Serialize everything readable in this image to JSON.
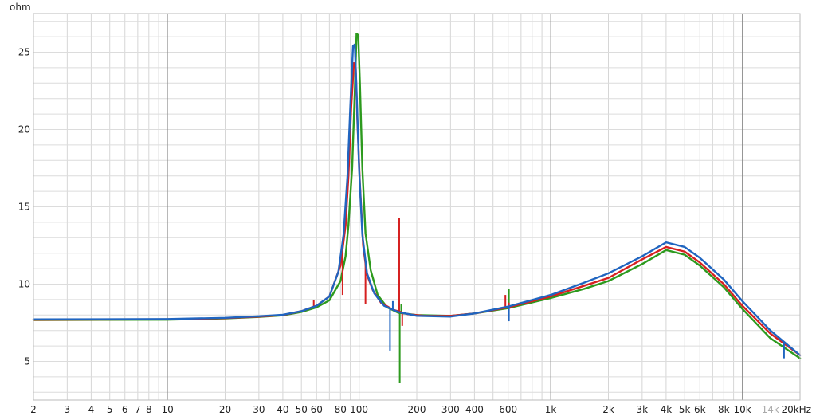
{
  "chart_data": {
    "type": "line",
    "title": "",
    "xlabel": "",
    "ylabel": "ohm",
    "x_scale": "log",
    "xlim": [
      2,
      20000
    ],
    "ylim": [
      2.5,
      27.5
    ],
    "grid": true,
    "legend": "none",
    "y_ticks": [
      {
        "value": 5,
        "label": "5"
      },
      {
        "value": 10,
        "label": "10"
      },
      {
        "value": 15,
        "label": "15"
      },
      {
        "value": 20,
        "label": "20"
      },
      {
        "value": 25,
        "label": "25"
      }
    ],
    "x_ticks": [
      {
        "value": 2,
        "label": "2"
      },
      {
        "value": 3,
        "label": "3"
      },
      {
        "value": 4,
        "label": "4"
      },
      {
        "value": 5,
        "label": "5"
      },
      {
        "value": 6,
        "label": "6"
      },
      {
        "value": 7,
        "label": "7"
      },
      {
        "value": 8,
        "label": "8"
      },
      {
        "value": 10,
        "label": "10"
      },
      {
        "value": 20,
        "label": "20"
      },
      {
        "value": 30,
        "label": "30"
      },
      {
        "value": 40,
        "label": "40"
      },
      {
        "value": 50,
        "label": "50"
      },
      {
        "value": 60,
        "label": "60"
      },
      {
        "value": 80,
        "label": "80"
      },
      {
        "value": 100,
        "label": "100"
      },
      {
        "value": 200,
        "label": "200"
      },
      {
        "value": 300,
        "label": "300"
      },
      {
        "value": 400,
        "label": "400"
      },
      {
        "value": 600,
        "label": "600"
      },
      {
        "value": 1000,
        "label": "1k"
      },
      {
        "value": 2000,
        "label": "2k"
      },
      {
        "value": 3000,
        "label": "3k"
      },
      {
        "value": 4000,
        "label": "4k"
      },
      {
        "value": 5000,
        "label": "5k"
      },
      {
        "value": 6000,
        "label": "6k"
      },
      {
        "value": 8000,
        "label": "8k"
      },
      {
        "value": 10000,
        "label": "10k"
      },
      {
        "value": 14000,
        "label": "14k",
        "dim": true
      },
      {
        "value": 20000,
        "label": "20kHz"
      }
    ],
    "major_x_gridlines": [
      10,
      100,
      1000,
      10000
    ],
    "series": [
      {
        "color": "#d62020",
        "points": [
          [
            2,
            7.7
          ],
          [
            10,
            7.72
          ],
          [
            20,
            7.8
          ],
          [
            30,
            7.9
          ],
          [
            40,
            8.0
          ],
          [
            50,
            8.25
          ],
          [
            60,
            8.6
          ],
          [
            70,
            9.2
          ],
          [
            80,
            11.2
          ],
          [
            85,
            13.8
          ],
          [
            88,
            17.0
          ],
          [
            91,
            21.5
          ],
          [
            94,
            24.3
          ],
          [
            96,
            24.0
          ],
          [
            98,
            20.5
          ],
          [
            101,
            16.5
          ],
          [
            105,
            12.5
          ],
          [
            110,
            10.6
          ],
          [
            118,
            9.6
          ],
          [
            130,
            8.8
          ],
          [
            150,
            8.35
          ],
          [
            180,
            8.05
          ],
          [
            220,
            7.95
          ],
          [
            300,
            7.95
          ],
          [
            400,
            8.1
          ],
          [
            600,
            8.5
          ],
          [
            1000,
            9.2
          ],
          [
            1500,
            9.9
          ],
          [
            2000,
            10.4
          ],
          [
            3000,
            11.6
          ],
          [
            4000,
            12.4
          ],
          [
            5000,
            12.1
          ],
          [
            6000,
            11.4
          ],
          [
            8000,
            10.0
          ],
          [
            10000,
            8.6
          ],
          [
            14000,
            6.8
          ],
          [
            20000,
            5.4
          ]
        ],
        "spikes": [
          [
            58,
            8.95
          ],
          [
            82,
            9.3
          ],
          [
            108,
            8.7
          ],
          [
            162,
            14.3
          ],
          [
            168,
            7.3
          ],
          [
            580,
            9.3
          ],
          [
            605,
            8.8
          ]
        ]
      },
      {
        "color": "#2d9a1e",
        "points": [
          [
            2,
            7.68
          ],
          [
            10,
            7.7
          ],
          [
            20,
            7.78
          ],
          [
            30,
            7.88
          ],
          [
            40,
            7.98
          ],
          [
            50,
            8.2
          ],
          [
            60,
            8.5
          ],
          [
            70,
            8.95
          ],
          [
            80,
            10.2
          ],
          [
            85,
            11.8
          ],
          [
            88,
            13.8
          ],
          [
            92,
            17.5
          ],
          [
            95,
            22.5
          ],
          [
            97,
            26.2
          ],
          [
            99,
            26.1
          ],
          [
            101,
            23.0
          ],
          [
            104,
            17.5
          ],
          [
            108,
            13.3
          ],
          [
            115,
            10.9
          ],
          [
            125,
            9.3
          ],
          [
            140,
            8.5
          ],
          [
            160,
            8.15
          ],
          [
            200,
            8.0
          ],
          [
            300,
            7.95
          ],
          [
            400,
            8.1
          ],
          [
            600,
            8.45
          ],
          [
            1000,
            9.1
          ],
          [
            1500,
            9.7
          ],
          [
            2000,
            10.2
          ],
          [
            3000,
            11.3
          ],
          [
            4000,
            12.2
          ],
          [
            5000,
            11.9
          ],
          [
            6000,
            11.2
          ],
          [
            8000,
            9.8
          ],
          [
            10000,
            8.4
          ],
          [
            14000,
            6.5
          ],
          [
            20000,
            5.2
          ]
        ],
        "spikes": [
          [
            163,
            3.6
          ],
          [
            166,
            8.7
          ],
          [
            605,
            9.7
          ]
        ]
      },
      {
        "color": "#2065c0",
        "points": [
          [
            2,
            7.72
          ],
          [
            10,
            7.74
          ],
          [
            20,
            7.82
          ],
          [
            30,
            7.92
          ],
          [
            40,
            8.02
          ],
          [
            50,
            8.25
          ],
          [
            60,
            8.6
          ],
          [
            70,
            9.2
          ],
          [
            78,
            10.8
          ],
          [
            83,
            13.2
          ],
          [
            87,
            17.0
          ],
          [
            90,
            21.5
          ],
          [
            93,
            25.4
          ],
          [
            95,
            25.5
          ],
          [
            97,
            22.5
          ],
          [
            100,
            17.5
          ],
          [
            104,
            13.2
          ],
          [
            110,
            10.7
          ],
          [
            120,
            9.4
          ],
          [
            135,
            8.6
          ],
          [
            160,
            8.2
          ],
          [
            200,
            7.95
          ],
          [
            300,
            7.9
          ],
          [
            400,
            8.1
          ],
          [
            600,
            8.55
          ],
          [
            1000,
            9.3
          ],
          [
            1500,
            10.1
          ],
          [
            2000,
            10.7
          ],
          [
            3000,
            11.8
          ],
          [
            4000,
            12.7
          ],
          [
            5000,
            12.4
          ],
          [
            6000,
            11.7
          ],
          [
            8000,
            10.3
          ],
          [
            10000,
            8.9
          ],
          [
            14000,
            7.0
          ],
          [
            20000,
            5.4
          ]
        ],
        "spikes": [
          [
            145,
            5.7
          ],
          [
            150,
            8.9
          ],
          [
            605,
            7.6
          ],
          [
            16500,
            5.2
          ]
        ]
      }
    ]
  }
}
